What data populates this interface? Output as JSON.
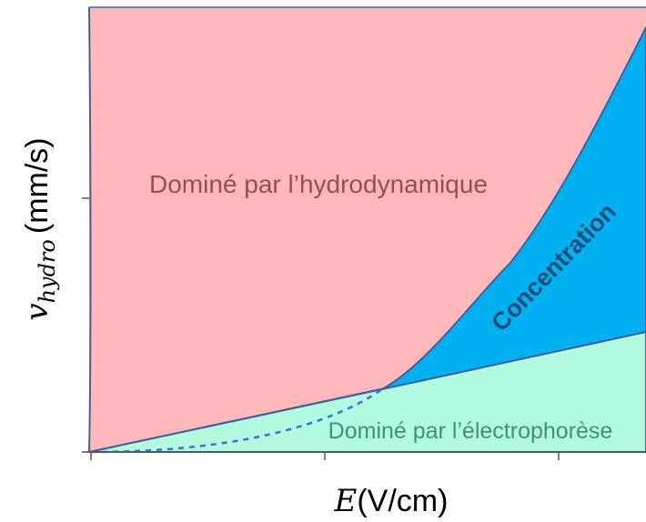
{
  "diagram": {
    "y_axis": {
      "symbol": "v",
      "subscript": "hydro",
      "unit": "(mm/s)"
    },
    "x_axis": {
      "symbol": "E",
      "unit": "(V/cm)"
    },
    "regions": {
      "hydrodynamic": "Dominé par l’hydrodynamique",
      "concentration": "Concentration",
      "electrophoresis": "Dominé par l’électrophorèse"
    }
  }
}
